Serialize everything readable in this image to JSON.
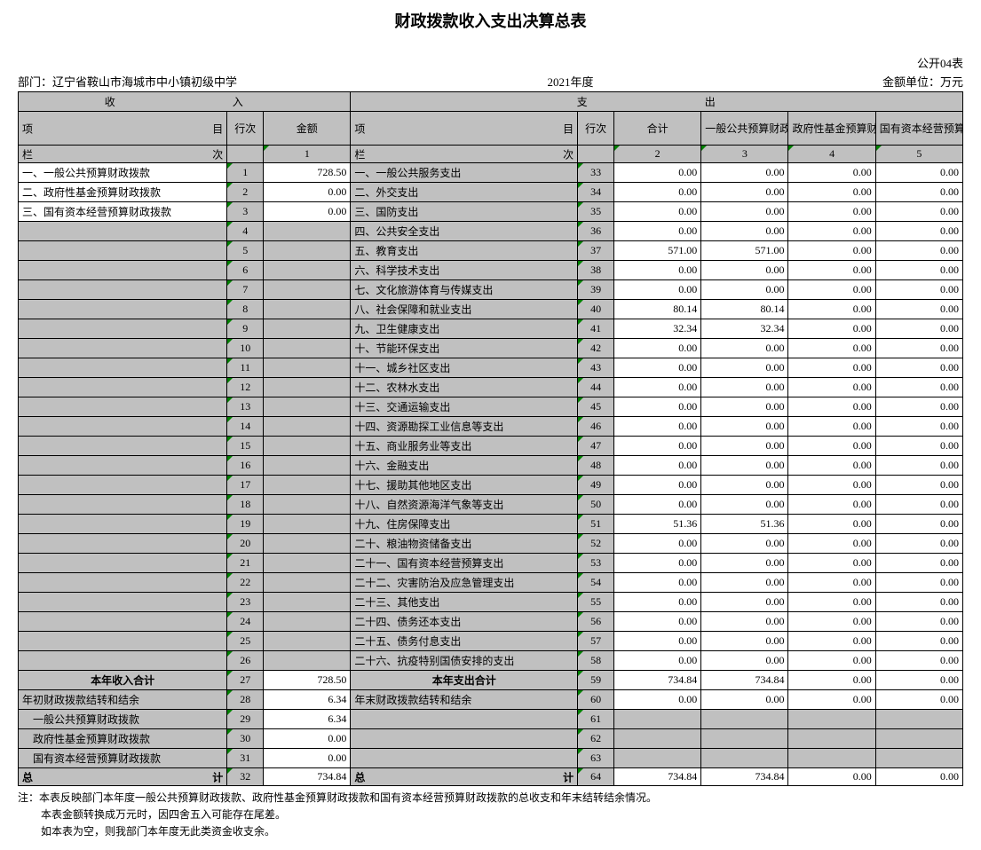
{
  "title": "财政拨款收入支出决算总表",
  "form_no": "公开04表",
  "dept_label": "部门：",
  "dept_name": "辽宁省鞍山市海城市中小镇初级中学",
  "year": "2021年度",
  "unit": "金额单位：万元",
  "headers": {
    "income": "收　　　入",
    "expense": "支　　　出",
    "item_left": "项",
    "item_right": "目",
    "row_no": "行次",
    "amount": "金额",
    "total": "合计",
    "col3": "一般公共预算财政拨款",
    "col4": "政府性基金预算财政拨款",
    "col5": "国有资本经营预算财政拨款",
    "lan": "栏",
    "ci": "次",
    "c1": "1",
    "c2": "2",
    "c3": "3",
    "c4": "4",
    "c5": "5",
    "income_total": "本年收入合计",
    "expense_total": "本年支出合计",
    "grand_total_left": "总",
    "grand_total_right": "计",
    "notes_label": "注："
  },
  "income_rows": [
    {
      "label": "一、一般公共预算财政拨款",
      "no": "1",
      "amt": "728.50",
      "grey": false
    },
    {
      "label": "二、政府性基金预算财政拨款",
      "no": "2",
      "amt": "0.00",
      "grey": false
    },
    {
      "label": "三、国有资本经营预算财政拨款",
      "no": "3",
      "amt": "0.00",
      "grey": false
    },
    {
      "label": "",
      "no": "4",
      "amt": "",
      "grey": true
    },
    {
      "label": "",
      "no": "5",
      "amt": "",
      "grey": true
    },
    {
      "label": "",
      "no": "6",
      "amt": "",
      "grey": true
    },
    {
      "label": "",
      "no": "7",
      "amt": "",
      "grey": true
    },
    {
      "label": "",
      "no": "8",
      "amt": "",
      "grey": true
    },
    {
      "label": "",
      "no": "9",
      "amt": "",
      "grey": true
    },
    {
      "label": "",
      "no": "10",
      "amt": "",
      "grey": true
    },
    {
      "label": "",
      "no": "11",
      "amt": "",
      "grey": true
    },
    {
      "label": "",
      "no": "12",
      "amt": "",
      "grey": true
    },
    {
      "label": "",
      "no": "13",
      "amt": "",
      "grey": true
    },
    {
      "label": "",
      "no": "14",
      "amt": "",
      "grey": true
    },
    {
      "label": "",
      "no": "15",
      "amt": "",
      "grey": true
    },
    {
      "label": "",
      "no": "16",
      "amt": "",
      "grey": true
    },
    {
      "label": "",
      "no": "17",
      "amt": "",
      "grey": true
    },
    {
      "label": "",
      "no": "18",
      "amt": "",
      "grey": true
    },
    {
      "label": "",
      "no": "19",
      "amt": "",
      "grey": true
    },
    {
      "label": "",
      "no": "20",
      "amt": "",
      "grey": true
    },
    {
      "label": "",
      "no": "21",
      "amt": "",
      "grey": true
    },
    {
      "label": "",
      "no": "22",
      "amt": "",
      "grey": true
    },
    {
      "label": "",
      "no": "23",
      "amt": "",
      "grey": true
    },
    {
      "label": "",
      "no": "24",
      "amt": "",
      "grey": true
    },
    {
      "label": "",
      "no": "25",
      "amt": "",
      "grey": true
    },
    {
      "label": "",
      "no": "26",
      "amt": "",
      "grey": true
    }
  ],
  "income_total_row": {
    "no": "27",
    "amt": "728.50"
  },
  "income_extra": [
    {
      "label": "年初财政拨款结转和结余",
      "no": "28",
      "amt": "6.34"
    },
    {
      "label": "　一般公共预算财政拨款",
      "no": "29",
      "amt": "6.34"
    },
    {
      "label": "　政府性基金预算财政拨款",
      "no": "30",
      "amt": "0.00"
    },
    {
      "label": "　国有资本经营预算财政拨款",
      "no": "31",
      "amt": "0.00"
    }
  ],
  "income_grand": {
    "no": "32",
    "amt": "734.84"
  },
  "expense_rows": [
    {
      "label": "一、一般公共服务支出",
      "no": "33",
      "c2": "0.00",
      "c3": "0.00",
      "c4": "0.00",
      "c5": "0.00"
    },
    {
      "label": "二、外交支出",
      "no": "34",
      "c2": "0.00",
      "c3": "0.00",
      "c4": "0.00",
      "c5": "0.00"
    },
    {
      "label": "三、国防支出",
      "no": "35",
      "c2": "0.00",
      "c3": "0.00",
      "c4": "0.00",
      "c5": "0.00"
    },
    {
      "label": "四、公共安全支出",
      "no": "36",
      "c2": "0.00",
      "c3": "0.00",
      "c4": "0.00",
      "c5": "0.00"
    },
    {
      "label": "五、教育支出",
      "no": "37",
      "c2": "571.00",
      "c3": "571.00",
      "c4": "0.00",
      "c5": "0.00"
    },
    {
      "label": "六、科学技术支出",
      "no": "38",
      "c2": "0.00",
      "c3": "0.00",
      "c4": "0.00",
      "c5": "0.00"
    },
    {
      "label": "七、文化旅游体育与传媒支出",
      "no": "39",
      "c2": "0.00",
      "c3": "0.00",
      "c4": "0.00",
      "c5": "0.00"
    },
    {
      "label": "八、社会保障和就业支出",
      "no": "40",
      "c2": "80.14",
      "c3": "80.14",
      "c4": "0.00",
      "c5": "0.00"
    },
    {
      "label": "九、卫生健康支出",
      "no": "41",
      "c2": "32.34",
      "c3": "32.34",
      "c4": "0.00",
      "c5": "0.00"
    },
    {
      "label": "十、节能环保支出",
      "no": "42",
      "c2": "0.00",
      "c3": "0.00",
      "c4": "0.00",
      "c5": "0.00"
    },
    {
      "label": "十一、城乡社区支出",
      "no": "43",
      "c2": "0.00",
      "c3": "0.00",
      "c4": "0.00",
      "c5": "0.00"
    },
    {
      "label": "十二、农林水支出",
      "no": "44",
      "c2": "0.00",
      "c3": "0.00",
      "c4": "0.00",
      "c5": "0.00"
    },
    {
      "label": "十三、交通运输支出",
      "no": "45",
      "c2": "0.00",
      "c3": "0.00",
      "c4": "0.00",
      "c5": "0.00"
    },
    {
      "label": "十四、资源勘探工业信息等支出",
      "no": "46",
      "c2": "0.00",
      "c3": "0.00",
      "c4": "0.00",
      "c5": "0.00"
    },
    {
      "label": "十五、商业服务业等支出",
      "no": "47",
      "c2": "0.00",
      "c3": "0.00",
      "c4": "0.00",
      "c5": "0.00"
    },
    {
      "label": "十六、金融支出",
      "no": "48",
      "c2": "0.00",
      "c3": "0.00",
      "c4": "0.00",
      "c5": "0.00"
    },
    {
      "label": "十七、援助其他地区支出",
      "no": "49",
      "c2": "0.00",
      "c3": "0.00",
      "c4": "0.00",
      "c5": "0.00"
    },
    {
      "label": "十八、自然资源海洋气象等支出",
      "no": "50",
      "c2": "0.00",
      "c3": "0.00",
      "c4": "0.00",
      "c5": "0.00"
    },
    {
      "label": "十九、住房保障支出",
      "no": "51",
      "c2": "51.36",
      "c3": "51.36",
      "c4": "0.00",
      "c5": "0.00"
    },
    {
      "label": "二十、粮油物资储备支出",
      "no": "52",
      "c2": "0.00",
      "c3": "0.00",
      "c4": "0.00",
      "c5": "0.00"
    },
    {
      "label": "二十一、国有资本经营预算支出",
      "no": "53",
      "c2": "0.00",
      "c3": "0.00",
      "c4": "0.00",
      "c5": "0.00"
    },
    {
      "label": "二十二、灾害防治及应急管理支出",
      "no": "54",
      "c2": "0.00",
      "c3": "0.00",
      "c4": "0.00",
      "c5": "0.00"
    },
    {
      "label": "二十三、其他支出",
      "no": "55",
      "c2": "0.00",
      "c3": "0.00",
      "c4": "0.00",
      "c5": "0.00"
    },
    {
      "label": "二十四、债务还本支出",
      "no": "56",
      "c2": "0.00",
      "c3": "0.00",
      "c4": "0.00",
      "c5": "0.00"
    },
    {
      "label": "二十五、债务付息支出",
      "no": "57",
      "c2": "0.00",
      "c3": "0.00",
      "c4": "0.00",
      "c5": "0.00"
    },
    {
      "label": "二十六、抗疫特别国债安排的支出",
      "no": "58",
      "c2": "0.00",
      "c3": "0.00",
      "c4": "0.00",
      "c5": "0.00"
    }
  ],
  "expense_total_row": {
    "no": "59",
    "c2": "734.84",
    "c3": "734.84",
    "c4": "0.00",
    "c5": "0.00"
  },
  "expense_extra": [
    {
      "label": "年末财政拨款结转和结余",
      "no": "60",
      "c2": "0.00",
      "c3": "0.00",
      "c4": "0.00",
      "c5": "0.00"
    },
    {
      "label": "",
      "no": "61",
      "c2": "",
      "c3": "",
      "c4": "",
      "c5": "",
      "grey": true
    },
    {
      "label": "",
      "no": "62",
      "c2": "",
      "c3": "",
      "c4": "",
      "c5": "",
      "grey": true
    },
    {
      "label": "",
      "no": "63",
      "c2": "",
      "c3": "",
      "c4": "",
      "c5": "",
      "grey": true
    }
  ],
  "expense_grand": {
    "no": "64",
    "c2": "734.84",
    "c3": "734.84",
    "c4": "0.00",
    "c5": "0.00"
  },
  "notes": [
    "本表反映部门本年度一般公共预算财政拨款、政府性基金预算财政拨款和国有资本经营预算财政拨款的总收支和年末结转结余情况。",
    "本表金额转换成万元时，因四舍五入可能存在尾差。",
    "如本表为空，则我部门本年度无此类资金收支余。"
  ],
  "cell_marker_color": "#008000"
}
